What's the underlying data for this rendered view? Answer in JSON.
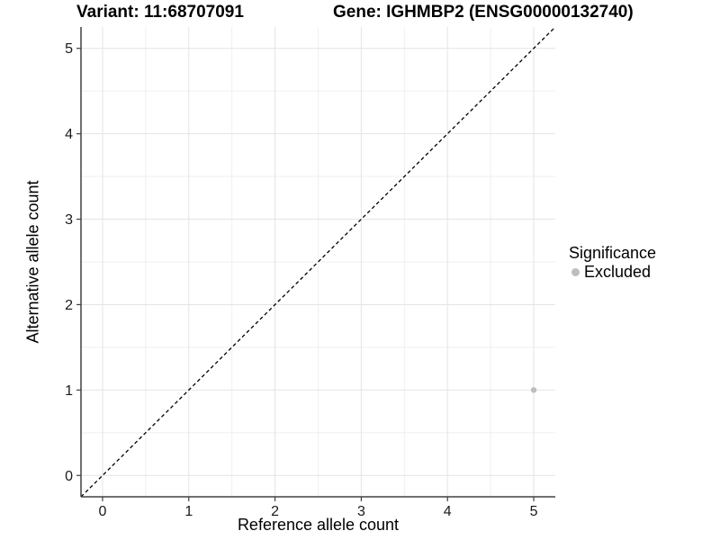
{
  "header": {
    "left_title": "Variant: 11:68707091",
    "right_title": "Gene: IGHMBP2 (ENSG00000132740)"
  },
  "chart_data": {
    "type": "scatter",
    "xlabel": "Reference allele count",
    "ylabel": "Alternative allele count",
    "xlim": [
      -0.25,
      5.25
    ],
    "ylim": [
      -0.25,
      5.25
    ],
    "xticks": [
      0,
      1,
      2,
      3,
      4,
      5
    ],
    "yticks": [
      0,
      1,
      2,
      3,
      4,
      5
    ],
    "minor_ticks": [
      0.5,
      1.5,
      2.5,
      3.5,
      4.5
    ],
    "grid": "major+minor",
    "legend_position": "right",
    "reference_line": {
      "type": "identity",
      "style": "dashed",
      "color": "#000000"
    },
    "series": [
      {
        "name": "Excluded",
        "color": "#bebebe",
        "points": [
          {
            "x": 5,
            "y": 1
          }
        ]
      }
    ],
    "legend": {
      "title": "Significance",
      "items": [
        {
          "label": "Excluded",
          "color": "#bebebe"
        }
      ]
    }
  },
  "colors": {
    "background": "#ffffff",
    "grid_major": "#e4e4e4",
    "grid_minor": "#efefef",
    "axis_line": "#404040",
    "tick_text": "#1a1a1a",
    "title_text": "#000000"
  }
}
